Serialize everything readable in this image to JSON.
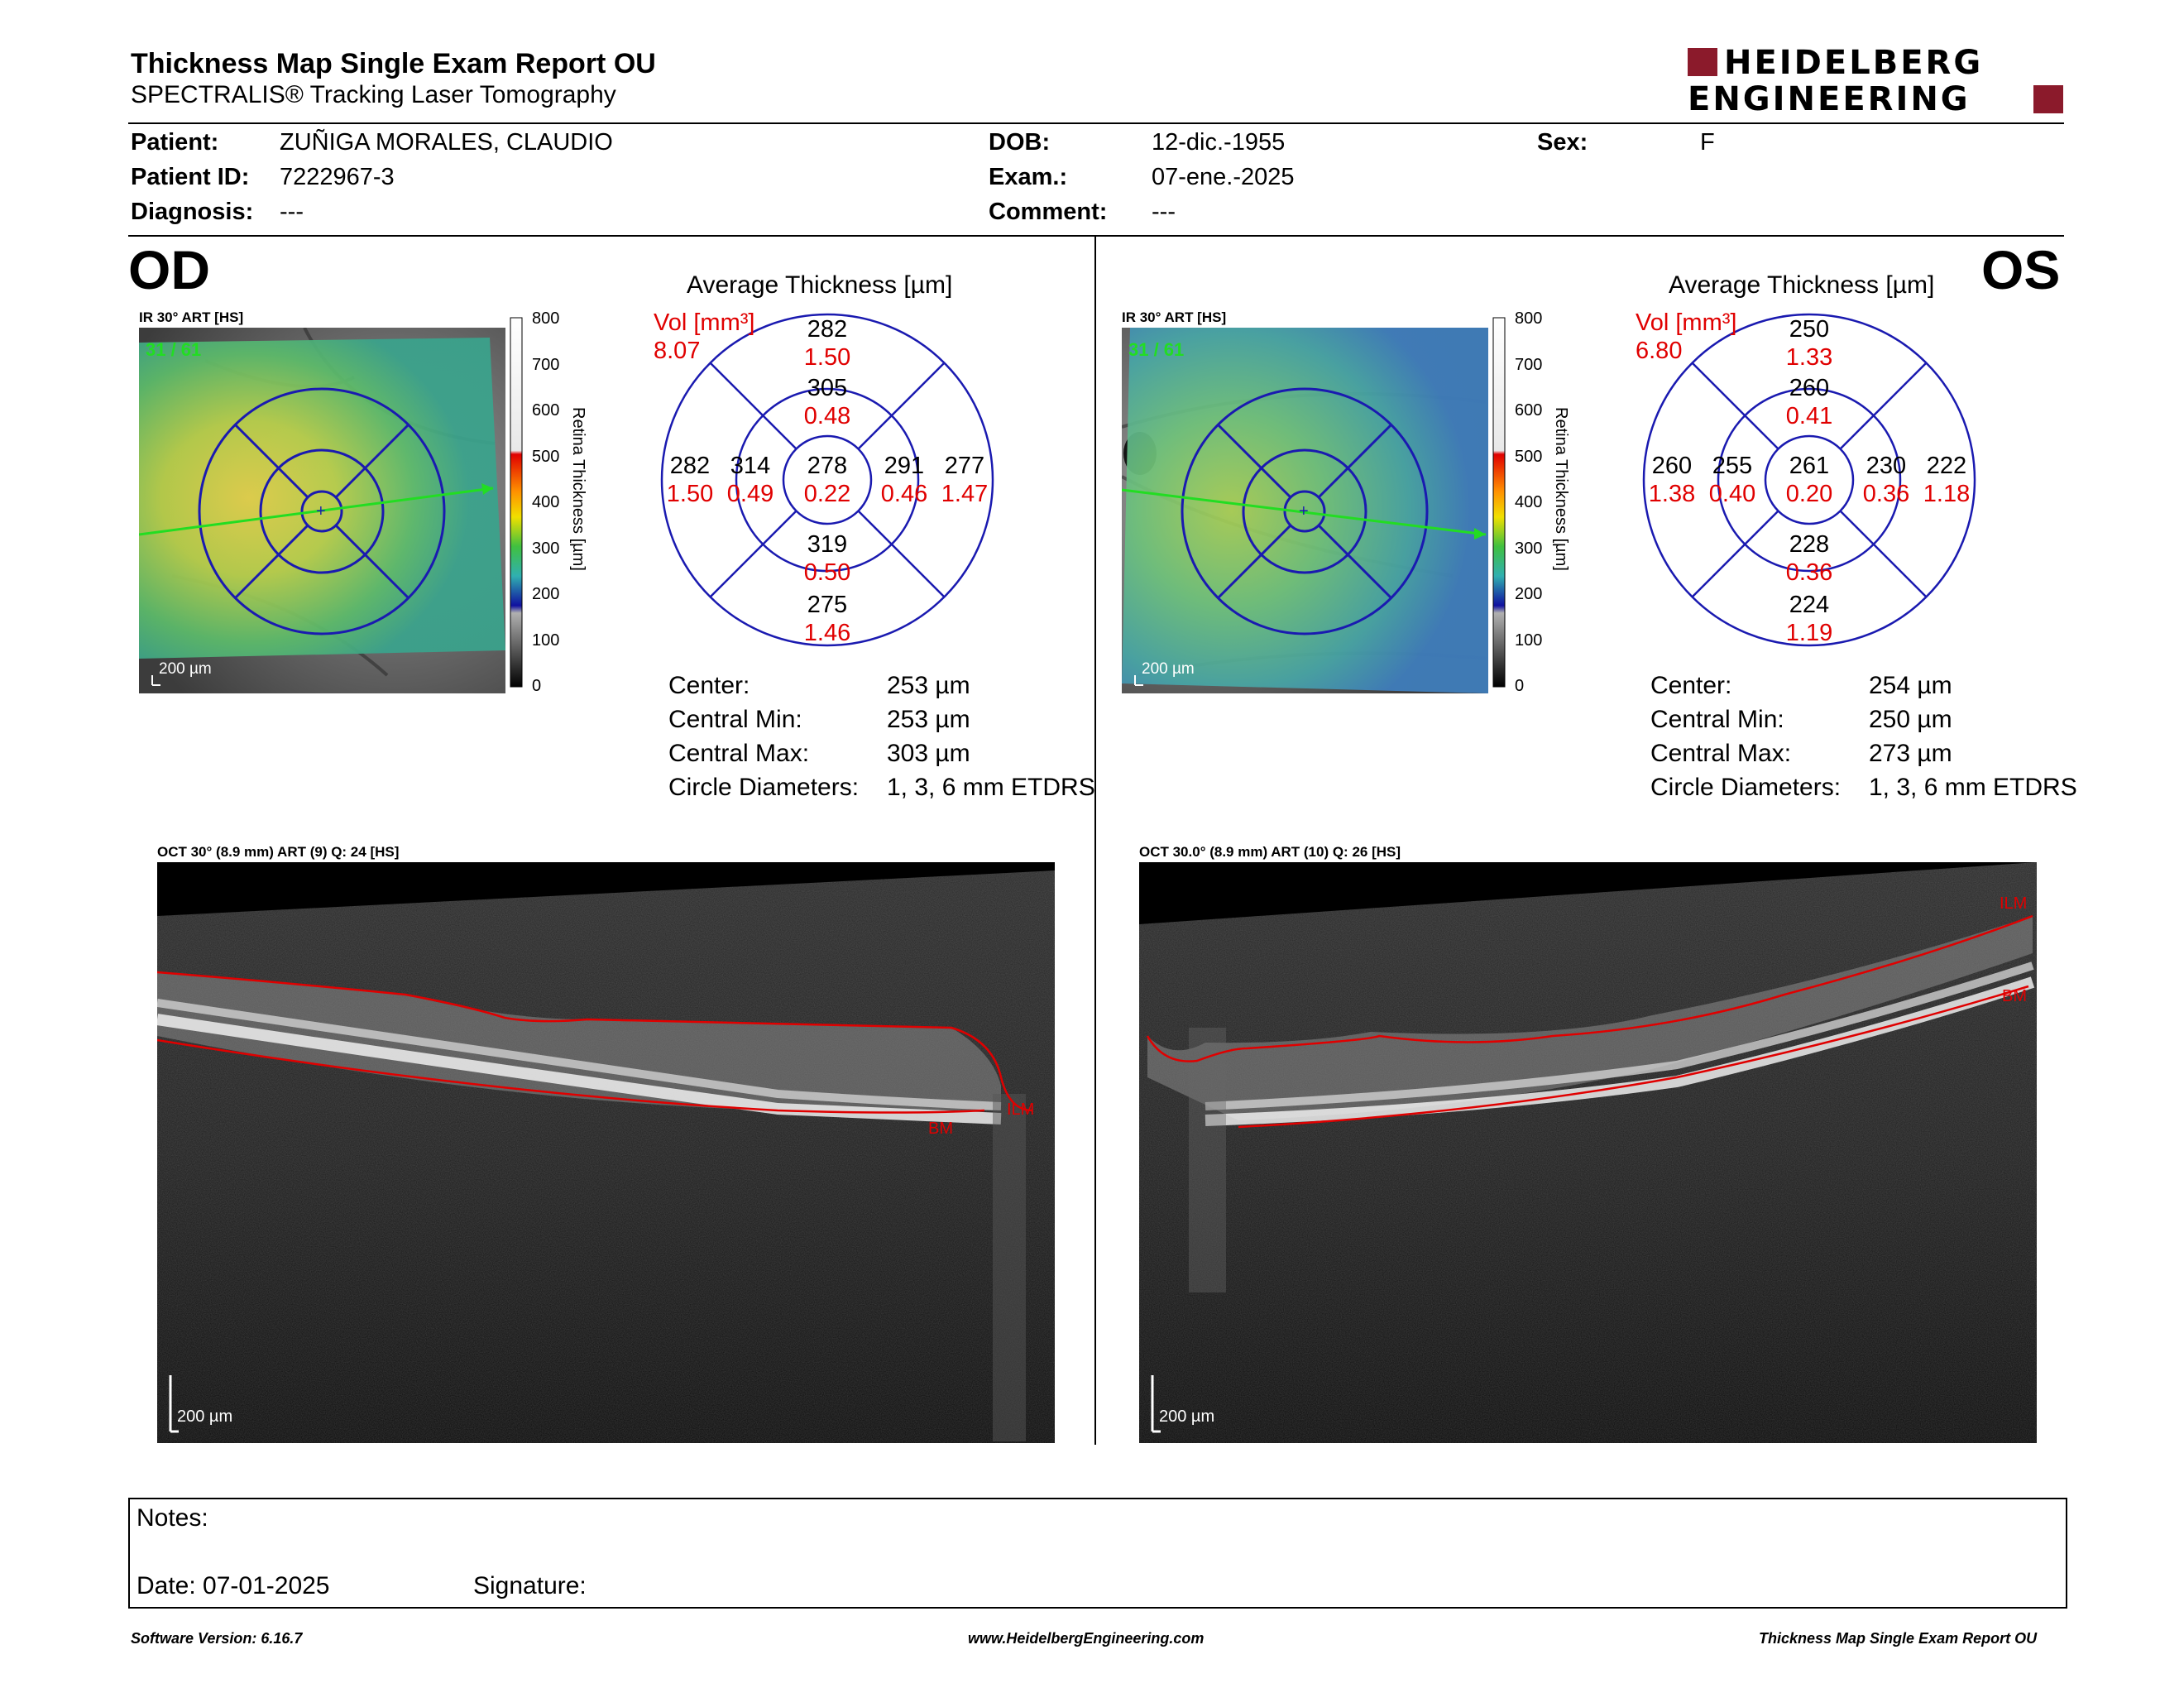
{
  "header": {
    "title": "Thickness Map Single Exam Report OU",
    "subtitle": "SPECTRALIS® Tracking Laser Tomography",
    "logo_top": "HEIDELBERG",
    "logo_bottom": "ENGINEERING"
  },
  "patient": {
    "patient_label": "Patient:",
    "patient_value": "ZUÑIGA MORALES, CLAUDIO",
    "id_label": "Patient ID:",
    "id_value": "7222967-3",
    "diagnosis_label": "Diagnosis:",
    "diagnosis_value": "---",
    "dob_label": "DOB:",
    "dob_value": "12-dic.-1955",
    "exam_label": "Exam.:",
    "exam_value": "07-ene.-2025",
    "comment_label": "Comment:",
    "comment_value": "---",
    "sex_label": "Sex:",
    "sex_value": "F"
  },
  "od": {
    "eye": "OD",
    "ir_label": "IR 30° ART [HS]",
    "frame_count": "31 / 61",
    "scale": "200 µm",
    "avg_title": "Average Thickness [µm]",
    "vol_label": "Vol [mm³]",
    "vol_total": "8.07",
    "sectors": {
      "center": {
        "t": "278",
        "v": "0.22"
      },
      "inner_sup": {
        "t": "305",
        "v": "0.48"
      },
      "inner_inf": {
        "t": "319",
        "v": "0.50"
      },
      "inner_nas": {
        "t": "291",
        "v": "0.46"
      },
      "inner_tem": {
        "t": "314",
        "v": "0.49"
      },
      "outer_sup": {
        "t": "282",
        "v": "1.50"
      },
      "outer_inf": {
        "t": "275",
        "v": "1.46"
      },
      "outer_nas": {
        "t": "277",
        "v": "1.47"
      },
      "outer_tem": {
        "t": "282",
        "v": "1.50"
      }
    },
    "stats": [
      {
        "label": "Center:",
        "value": "253 µm"
      },
      {
        "label": "Central Min:",
        "value": "253 µm"
      },
      {
        "label": "Central Max:",
        "value": "303 µm"
      },
      {
        "label": "Circle Diameters:",
        "value": "1, 3, 6 mm ETDRS"
      }
    ],
    "oct_label": "OCT 30° (8.9 mm) ART (9) Q: 24 [HS]",
    "oct_scale": "200 µm",
    "ilm": "ILM",
    "bm": "BM"
  },
  "os": {
    "eye": "OS",
    "ir_label": "IR 30° ART [HS]",
    "frame_count": "31 / 61",
    "scale": "200 µm",
    "avg_title": "Average Thickness [µm]",
    "vol_label": "Vol [mm³]",
    "vol_total": "6.80",
    "sectors": {
      "center": {
        "t": "261",
        "v": "0.20"
      },
      "inner_sup": {
        "t": "260",
        "v": "0.41"
      },
      "inner_inf": {
        "t": "228",
        "v": "0.36"
      },
      "inner_nas": {
        "t": "255",
        "v": "0.40"
      },
      "inner_tem": {
        "t": "230",
        "v": "0.36"
      },
      "outer_sup": {
        "t": "250",
        "v": "1.33"
      },
      "outer_inf": {
        "t": "224",
        "v": "1.19"
      },
      "outer_nas": {
        "t": "260",
        "v": "1.38"
      },
      "outer_tem": {
        "t": "222",
        "v": "1.18"
      }
    },
    "stats": [
      {
        "label": "Center:",
        "value": "254 µm"
      },
      {
        "label": "Central Min:",
        "value": "250 µm"
      },
      {
        "label": "Central Max:",
        "value": "273 µm"
      },
      {
        "label": "Circle Diameters:",
        "value": "1, 3, 6 mm ETDRS"
      }
    ],
    "oct_label": "OCT 30.0° (8.9 mm) ART (10) Q: 26 [HS]",
    "oct_scale": "200 µm",
    "ilm": "ILM",
    "bm": "BM"
  },
  "colorbar": {
    "title": "Retina Thickness [µm]",
    "ticks": [
      "800",
      "700",
      "600",
      "500",
      "400",
      "300",
      "200",
      "100",
      "0"
    ]
  },
  "notes": {
    "notes_label": "Notes:",
    "date_label": "Date: 07-01-2025",
    "signature_label": "Signature:"
  },
  "footer": {
    "software": "Software Version: 6.16.7",
    "website": "www.HeidelbergEngineering.com",
    "report": "Thickness Map Single Exam Report OU"
  },
  "colors": {
    "vol_red": "#e00000",
    "circle_blue": "#1a1ab0",
    "logo_red": "#8b1a2b"
  }
}
